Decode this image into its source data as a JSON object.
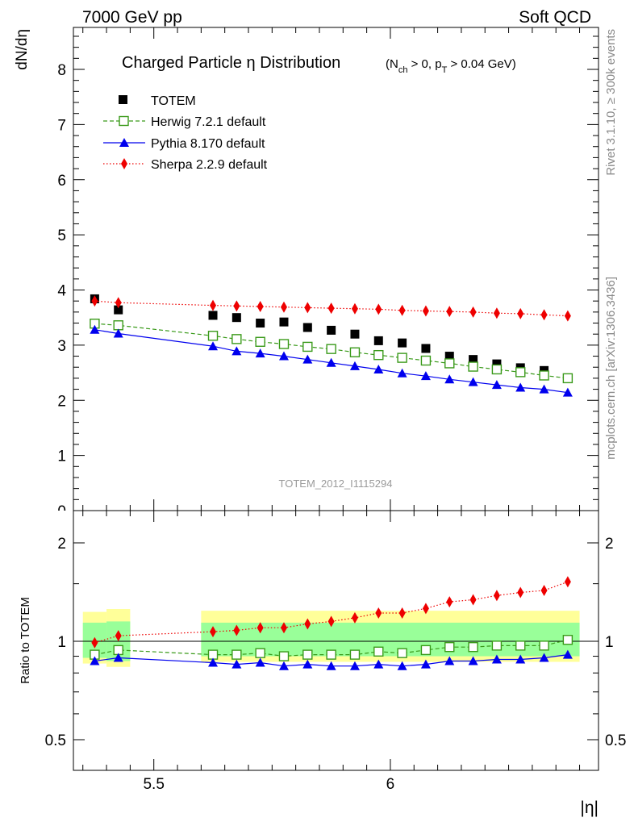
{
  "header": {
    "left": "7000 GeV pp",
    "right": "Soft QCD"
  },
  "side_labels": {
    "rivet": "Rivet 3.1.10, ≥ 300k events",
    "mcplots": "mcplots.cern.ch [arXiv:1306.3436]"
  },
  "watermark": "TOTEM_2012_I1115294",
  "chart_data": [
    {
      "type": "line",
      "panel": "main",
      "title": "Charged Particle η Distribution",
      "title_cuts": {
        "part1": "(N",
        "sub1": "ch",
        "part2": " > 0, p",
        "sub2": "T",
        "part3": " > 0.04 GeV)"
      },
      "xlabel": "|η|",
      "ylabel": "dN/dη",
      "xlim": [
        5.33,
        6.44
      ],
      "ylim": [
        0,
        8.8
      ],
      "yticks": [
        1,
        2,
        3,
        4,
        5,
        6,
        7,
        8
      ],
      "ytick_labels": [
        "1",
        "2",
        "3",
        "4",
        "5",
        "6",
        "7",
        "8"
      ],
      "grid": false,
      "legend_position": "top-left",
      "x": [
        5.375,
        5.425,
        5.625,
        5.675,
        5.725,
        5.775,
        5.825,
        5.875,
        5.925,
        5.975,
        6.025,
        6.075,
        6.125,
        6.175,
        6.225,
        6.275,
        6.325,
        6.375
      ],
      "series": [
        {
          "name": "TOTEM",
          "style": "markers",
          "color": "#000000",
          "values": [
            3.84,
            3.64,
            3.54,
            3.5,
            3.4,
            3.42,
            3.32,
            3.27,
            3.2,
            3.08,
            3.04,
            2.94,
            2.8,
            2.74,
            2.66,
            2.59,
            2.54,
            2.4
          ]
        },
        {
          "name": "Herwig 7.2.1 default",
          "style": "dashed-open-square",
          "color": "#3a9a1a",
          "values": [
            3.39,
            3.36,
            3.17,
            3.11,
            3.06,
            3.02,
            2.97,
            2.93,
            2.87,
            2.82,
            2.77,
            2.72,
            2.67,
            2.61,
            2.56,
            2.51,
            2.45,
            2.4
          ]
        },
        {
          "name": "Pythia 8.170 default",
          "style": "solid-triangle",
          "color": "#0000ee",
          "values": [
            3.28,
            3.21,
            2.98,
            2.89,
            2.85,
            2.8,
            2.74,
            2.68,
            2.62,
            2.56,
            2.49,
            2.44,
            2.38,
            2.33,
            2.28,
            2.23,
            2.2,
            2.14
          ]
        },
        {
          "name": "Sherpa 2.2.9 default",
          "style": "dotted-diamond",
          "color": "#ee0000",
          "values": [
            3.8,
            3.77,
            3.72,
            3.71,
            3.7,
            3.69,
            3.68,
            3.67,
            3.66,
            3.65,
            3.63,
            3.62,
            3.61,
            3.6,
            3.58,
            3.57,
            3.55,
            3.53
          ]
        }
      ]
    },
    {
      "type": "line",
      "panel": "ratio",
      "xlabel": "|η|",
      "ylabel": "Ratio to TOTEM",
      "xlim": [
        5.33,
        6.44
      ],
      "ylim": [
        0.4,
        2.3
      ],
      "log_scale_y": true,
      "yticks": [
        0.5,
        1,
        2
      ],
      "ytick_labels": [
        "0.5",
        "1",
        "2"
      ],
      "xticks": [
        5.5,
        6
      ],
      "xtick_labels": [
        "5.5",
        "6"
      ],
      "grid": false,
      "x": [
        5.375,
        5.425,
        5.625,
        5.675,
        5.725,
        5.775,
        5.825,
        5.875,
        5.925,
        5.975,
        6.025,
        6.075,
        6.125,
        6.175,
        6.225,
        6.275,
        6.325,
        6.375
      ],
      "bands": {
        "yellow_color": "#ffff99",
        "green_color": "#99ff99",
        "segments": [
          {
            "x0": 5.35,
            "x1": 5.4,
            "yellow": [
              0.855,
              1.23
            ],
            "green": [
              0.89,
              1.14
            ]
          },
          {
            "x0": 5.4,
            "x1": 5.45,
            "yellow": [
              0.835,
              1.255
            ],
            "green": [
              0.87,
              1.15
            ]
          },
          {
            "x0": 5.6,
            "x1": 6.4,
            "yellow": [
              0.865,
              1.24
            ],
            "green": [
              0.9,
              1.14
            ]
          }
        ]
      },
      "series": [
        {
          "name": "Herwig 7.2.1 default",
          "style": "dashed-open-square",
          "color": "#3a9a1a",
          "values": [
            0.91,
            0.94,
            0.91,
            0.91,
            0.92,
            0.9,
            0.91,
            0.91,
            0.91,
            0.93,
            0.92,
            0.94,
            0.96,
            0.96,
            0.97,
            0.97,
            0.97,
            1.01
          ]
        },
        {
          "name": "Pythia 8.170 default",
          "style": "solid-triangle",
          "color": "#0000ee",
          "values": [
            0.87,
            0.89,
            0.86,
            0.85,
            0.86,
            0.84,
            0.85,
            0.84,
            0.84,
            0.85,
            0.84,
            0.85,
            0.87,
            0.87,
            0.88,
            0.88,
            0.89,
            0.91
          ]
        },
        {
          "name": "Sherpa 2.2.9 default",
          "style": "dotted-diamond",
          "color": "#ee0000",
          "values": [
            0.99,
            1.04,
            1.07,
            1.08,
            1.1,
            1.1,
            1.13,
            1.15,
            1.18,
            1.22,
            1.22,
            1.26,
            1.32,
            1.34,
            1.38,
            1.41,
            1.43,
            1.52
          ]
        }
      ]
    }
  ]
}
